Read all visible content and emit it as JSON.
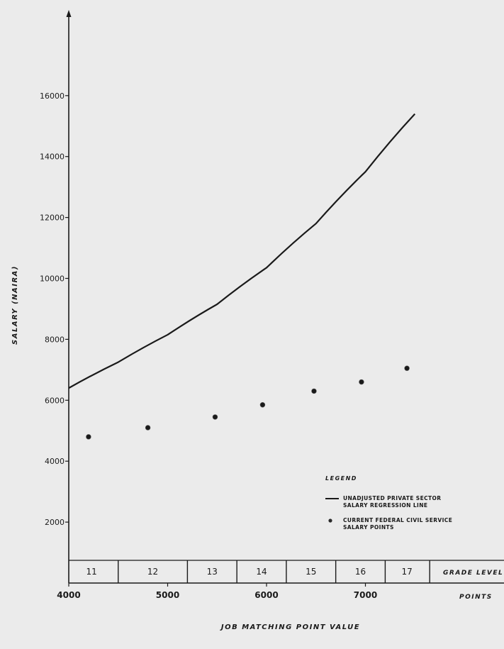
{
  "chart_data": {
    "type": "line",
    "title": "",
    "xlabel": "JOB MATCHING POINT VALUE",
    "ylabel": "SALARY (NAIRA)",
    "x_unit_label": "POINTS",
    "grade_axis_label": "GRADE LEVEL",
    "xlim": [
      4000,
      7700
    ],
    "ylim": [
      0,
      18000
    ],
    "x_ticks": [
      {
        "value": 4000,
        "label": "4000"
      },
      {
        "value": 5000,
        "label": "5000"
      },
      {
        "value": 6000,
        "label": "6000"
      },
      {
        "value": 7000,
        "label": "7000"
      }
    ],
    "y_ticks": [
      {
        "value": 2000,
        "label": "2000"
      },
      {
        "value": 4000,
        "label": "4000"
      },
      {
        "value": 6000,
        "label": "6000"
      },
      {
        "value": 8000,
        "label": "8000"
      },
      {
        "value": 10000,
        "label": "10000"
      },
      {
        "value": 12000,
        "label": "12000"
      },
      {
        "value": 14000,
        "label": "14000"
      },
      {
        "value": 16000,
        "label": "16000"
      }
    ],
    "grade_boundaries": [
      4500,
      5200,
      5700,
      6200,
      6700,
      7200,
      7650
    ],
    "grade_levels": [
      {
        "label": "11",
        "center": 4230
      },
      {
        "label": "12",
        "center": 4850
      },
      {
        "label": "13",
        "center": 5450
      },
      {
        "label": "14",
        "center": 5950
      },
      {
        "label": "15",
        "center": 6450
      },
      {
        "label": "16",
        "center": 6950
      },
      {
        "label": "17",
        "center": 7420
      }
    ],
    "series": [
      {
        "name": "UNADJUSTED PRIVATE SECTOR SALARY REGRESSION LINE",
        "kind": "line",
        "color": "#1a1a1a",
        "x": [
          4000,
          4500,
          5000,
          5500,
          6000,
          6500,
          7000,
          7500
        ],
        "y": [
          6400,
          7250,
          8150,
          9150,
          10350,
          11800,
          13500,
          15400
        ]
      },
      {
        "name": "CURRENT FEDERAL CIVIL SERVICE SALARY POINTS",
        "kind": "scatter",
        "color": "#1a1a1a",
        "x": [
          4200,
          4800,
          5480,
          5960,
          6480,
          6960,
          7420
        ],
        "y": [
          4800,
          5100,
          5450,
          5850,
          6300,
          6600,
          7050
        ]
      }
    ],
    "legend": {
      "title": "LEGEND",
      "position": "bottom-right",
      "entries": [
        {
          "lines": [
            "UNADJUSTED PRIVATE SECTOR",
            "SALARY REGRESSION LINE"
          ]
        },
        {
          "lines": [
            "CURRENT FEDERAL CIVIL SERVICE",
            "SALARY POINTS"
          ]
        }
      ]
    }
  }
}
